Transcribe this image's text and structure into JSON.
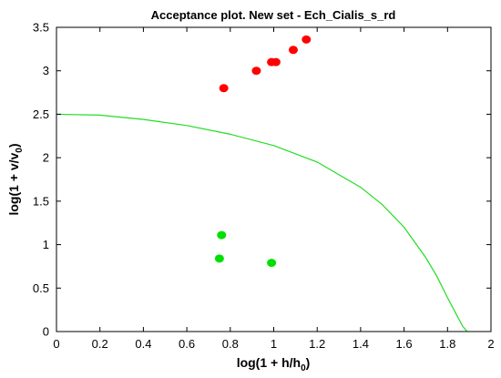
{
  "chart_data": {
    "type": "scatter",
    "title": "Acceptance plot. New set - Ech_Cialis_s_rd",
    "xlabel": {
      "text": "log(1 + h/h",
      "sub": "0",
      "tail": ")"
    },
    "ylabel": {
      "text": "log(1 + v/v",
      "sub": "0",
      "tail": ")"
    },
    "xlim": [
      0,
      2
    ],
    "ylim": [
      0,
      3.5
    ],
    "xticks": [
      "0",
      "0.2",
      "0.4",
      "0.6",
      "0.8",
      "1",
      "1.2",
      "1.4",
      "1.6",
      "1.8",
      "2"
    ],
    "yticks": [
      "0",
      "0.5",
      "1",
      "1.5",
      "2",
      "2.5",
      "3",
      "3.5"
    ],
    "grid": false,
    "series": [
      {
        "color": "#ff0000",
        "points": [
          {
            "x": 0.77,
            "y": 2.8
          },
          {
            "x": 0.92,
            "y": 3.0
          },
          {
            "x": 0.99,
            "y": 3.1
          },
          {
            "x": 1.01,
            "y": 3.1
          },
          {
            "x": 1.09,
            "y": 3.24
          },
          {
            "x": 1.15,
            "y": 3.36
          }
        ]
      },
      {
        "color": "#00e000",
        "points": [
          {
            "x": 0.76,
            "y": 1.11
          },
          {
            "x": 0.75,
            "y": 0.84
          },
          {
            "x": 0.99,
            "y": 0.79
          }
        ]
      }
    ],
    "boundary": {
      "color": "#22dd22",
      "x": [
        0,
        0.2,
        0.4,
        0.6,
        0.8,
        1.0,
        1.2,
        1.4,
        1.5,
        1.6,
        1.7,
        1.75,
        1.8,
        1.84,
        1.87,
        1.89
      ],
      "y": [
        2.5,
        2.49,
        2.44,
        2.37,
        2.27,
        2.14,
        1.95,
        1.66,
        1.46,
        1.2,
        0.85,
        0.64,
        0.39,
        0.2,
        0.06,
        0.0
      ]
    }
  }
}
